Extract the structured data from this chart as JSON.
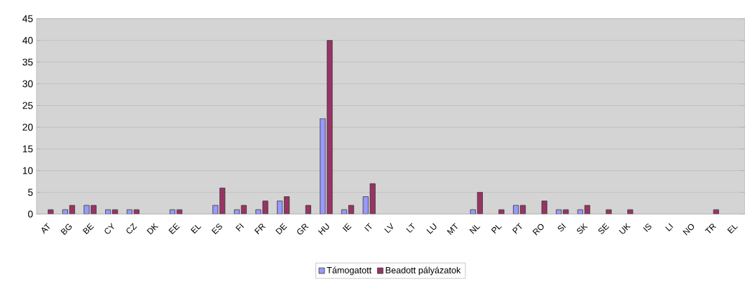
{
  "chart_data": {
    "type": "bar",
    "categories": [
      "AT",
      "BG",
      "BE",
      "CY",
      "CZ",
      "DK",
      "EE",
      "EL",
      "ES",
      "FI",
      "FR",
      "DE",
      "GR",
      "HU",
      "IE",
      "IT",
      "LV",
      "LT",
      "LU",
      "MT",
      "NL",
      "PL",
      "PT",
      "RO",
      "SI",
      "SK",
      "SE",
      "UK",
      "IS",
      "LI",
      "NO",
      "TR",
      "EL"
    ],
    "series": [
      {
        "name": "Támogatott",
        "color": "#9999ff",
        "values": [
          0,
          1,
          2,
          1,
          1,
          0,
          1,
          0,
          2,
          1,
          1,
          3,
          0,
          22,
          1,
          4,
          0,
          0,
          0,
          0,
          1,
          0,
          2,
          0,
          1,
          1,
          0,
          0,
          0,
          0,
          0,
          0,
          0
        ]
      },
      {
        "name": "Beadott pályázatok",
        "color": "#993366",
        "values": [
          1,
          2,
          2,
          1,
          1,
          0,
          1,
          0,
          6,
          2,
          3,
          4,
          2,
          40,
          2,
          7,
          0,
          0,
          0,
          0,
          5,
          1,
          2,
          3,
          1,
          2,
          1,
          1,
          0,
          0,
          0,
          1,
          0
        ]
      }
    ],
    "ylim": [
      0,
      45
    ],
    "yticks": [
      0,
      5,
      10,
      15,
      20,
      25,
      30,
      35,
      40,
      45
    ],
    "grid": "y",
    "legend": "bottom"
  }
}
